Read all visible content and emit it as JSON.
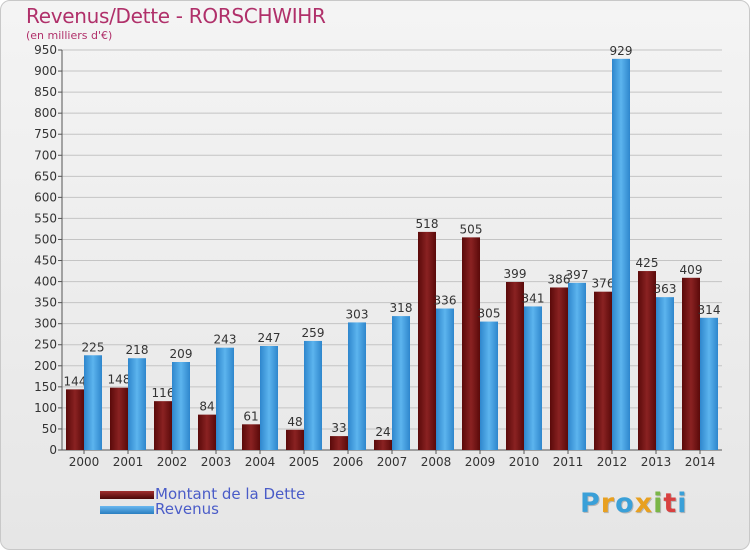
{
  "header": {
    "title": "Revenus/Dette - RORSCHWIHR",
    "subtitle": "(en milliers d'€)"
  },
  "legend": {
    "debt_label": "Montant de la Dette",
    "revenue_label": "Revenus"
  },
  "logo": {
    "letters": [
      "P",
      "r",
      "o",
      "x",
      "i",
      "t",
      "i"
    ],
    "colors": [
      "#3aa0d8",
      "#e8a020",
      "#3aa0d8",
      "#e8a020",
      "#7ab648",
      "#d84040",
      "#3aa0d8"
    ]
  },
  "colors": {
    "debt": "#7a1a1a",
    "revenue": "#3c96dc",
    "title": "#b0306a",
    "legend_text": "#4a5cc8"
  },
  "chart_data": {
    "type": "bar",
    "title": "Revenus/Dette - RORSCHWIHR",
    "ylabel": "(en milliers d'€)",
    "xlabel": "",
    "ylim": [
      0,
      950
    ],
    "ytick_step": 50,
    "grid": true,
    "legend": "bottom-left",
    "categories": [
      "2000",
      "2001",
      "2002",
      "2003",
      "2004",
      "2005",
      "2006",
      "2007",
      "2008",
      "2009",
      "2010",
      "2011",
      "2012",
      "2013",
      "2014"
    ],
    "series": [
      {
        "name": "Montant de la Dette",
        "values": [
          144,
          148,
          116,
          84,
          61,
          48,
          33,
          24,
          518,
          505,
          399,
          386,
          376,
          425,
          409
        ]
      },
      {
        "name": "Revenus",
        "values": [
          225,
          218,
          209,
          243,
          247,
          259,
          303,
          318,
          336,
          305,
          341,
          397,
          929,
          363,
          314
        ]
      }
    ]
  }
}
